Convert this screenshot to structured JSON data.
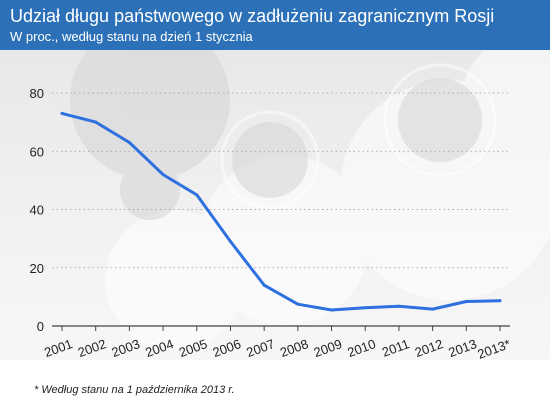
{
  "header": {
    "title": "Udział długu państwowego w zadłużeniu zagranicznym Rosji",
    "subtitle": "W proc., według stanu na dzień 1 stycznia"
  },
  "footnote": "* Według stanu na 1 października 2013 r.",
  "colors": {
    "header_bg": "#2c71b8",
    "line": "#2e70e0"
  },
  "chart_data": {
    "type": "line",
    "title": "Udział długu państwowego w zadłużeniu zagranicznym Rosji",
    "subtitle": "W proc., według stanu na dzień 1 stycznia",
    "xlabel": "",
    "ylabel": "",
    "categories": [
      "2001",
      "2002",
      "2003",
      "2004",
      "2005",
      "2006",
      "2007",
      "2008",
      "2009",
      "2010",
      "2011",
      "2012",
      "2013",
      "2013*"
    ],
    "series": [
      {
        "values": [
          73,
          70,
          63,
          52,
          45,
          29,
          14,
          7.5,
          5.5,
          6.3,
          6.8,
          5.8,
          8.4,
          8.7
        ]
      }
    ],
    "ylim": [
      0,
      80
    ],
    "yticks": [
      "0",
      "20",
      "40",
      "60",
      "80"
    ],
    "grid": true,
    "legend": "none"
  }
}
